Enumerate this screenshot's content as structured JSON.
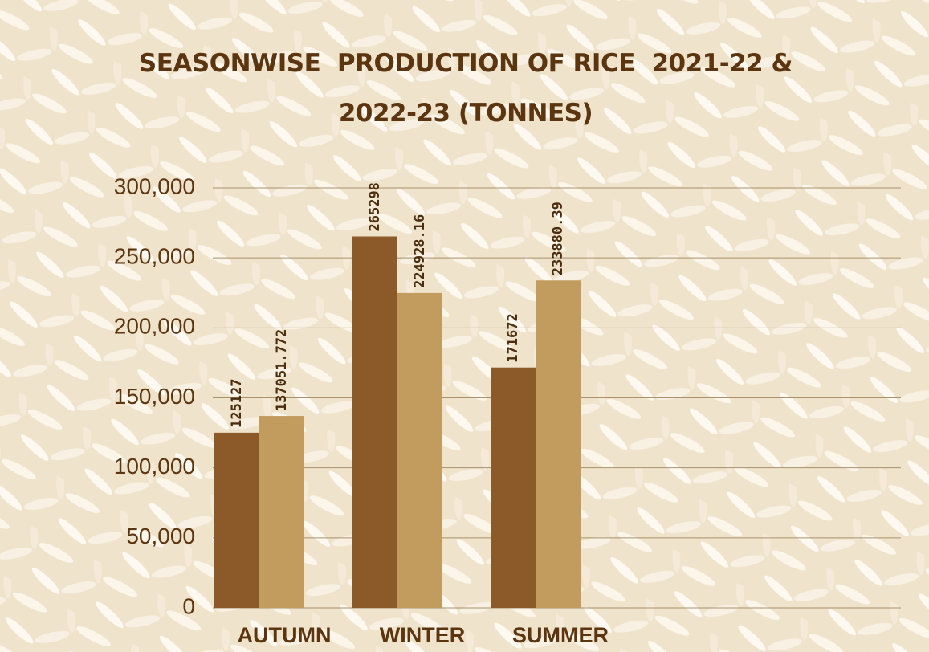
{
  "chart_data": {
    "type": "bar",
    "title": "SEASONWISE  PRODUCTION OF RICE  2021-22 & 2022-23 (TONNES)",
    "categories": [
      "AUTUMN",
      "WINTER",
      "SUMMER"
    ],
    "series": [
      {
        "color": "#8c5a28",
        "values": [
          125127,
          265298,
          171672
        ]
      },
      {
        "color": "#c29b5e",
        "values": [
          137051.772,
          224928.16,
          233880.39
        ]
      }
    ],
    "ylim": [
      0,
      300000
    ],
    "yticks": [
      0,
      {
        "value": 50000,
        "label": "50,000"
      },
      {
        "value": 100000,
        "label": "100,000"
      },
      {
        "value": 150000,
        "label": "150,000"
      },
      {
        "value": 200000,
        "label": "200,000"
      },
      {
        "value": 250000,
        "label": "250,000"
      },
      {
        "value": 300000,
        "label": "300,000"
      }
    ],
    "grid": true
  }
}
